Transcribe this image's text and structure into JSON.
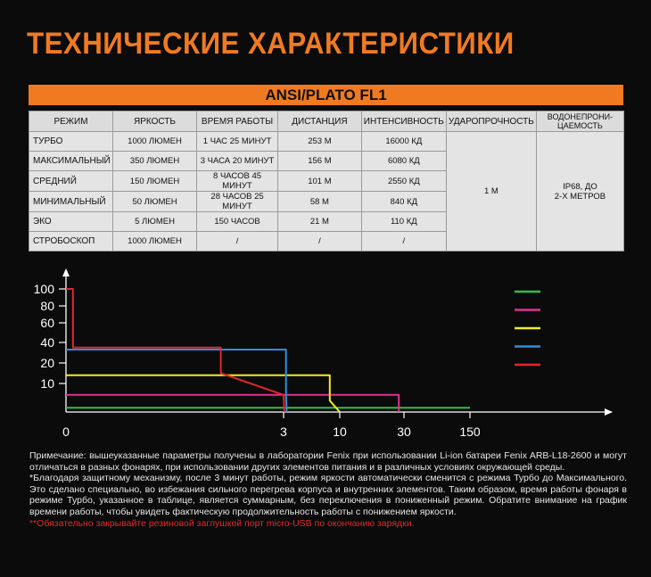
{
  "title": "ТЕХНИЧЕСКИЕ ХАРАКТЕРИСТИКИ",
  "banner": "ANSI/PLATO FL1",
  "colors": {
    "accent": "#f07a22"
  },
  "table": {
    "headers": [
      "РЕЖИМ",
      "ЯРКОСТЬ",
      "ВРЕМЯ РАБОТЫ",
      "ДИСТАНЦИЯ",
      "ИНТЕНСИВНОСТЬ",
      "УДАРОПРОЧНОСТЬ",
      "ВОДОНЕПРОНИ-ЦАЕМОСТЬ"
    ],
    "rows": [
      [
        "ТУРБО",
        "1000 ЛЮМЕН",
        "1 ЧАС 25 МИНУТ",
        "253 М",
        "16000 КД"
      ],
      [
        "МАКСИМАЛЬНЫЙ",
        "350 ЛЮМЕН",
        "3 ЧАСА 20 МИНУТ",
        "156 М",
        "6080 КД"
      ],
      [
        "СРЕДНИЙ",
        "150 ЛЮМЕН",
        "8 ЧАСОВ 45 МИНУТ",
        "101 М",
        "2550 КД"
      ],
      [
        "МИНИМАЛЬНЫЙ",
        "50 ЛЮМЕН",
        "28 ЧАСОВ 25 МИНУТ",
        "58 М",
        "840 КД"
      ],
      [
        "ЭКО",
        "5 ЛЮМЕН",
        "150 ЧАСОВ",
        "21 М",
        "110 КД"
      ],
      [
        "СТРОБОСКОП",
        "1000 ЛЮМЕН",
        "/",
        "/",
        "/"
      ]
    ],
    "impact": "1 М",
    "waterproof_line1": "IP68, ДО",
    "waterproof_line2": "2-Х МЕТРОВ"
  },
  "chart_data": {
    "type": "line",
    "y_ticks": [
      "100",
      "80",
      "60",
      "40",
      "20",
      "10"
    ],
    "x_ticks": [
      "0",
      "3",
      "10",
      "30",
      "150"
    ],
    "series": [
      {
        "color": "#2fbf4a",
        "points": [
          [
            0,
            1.5
          ],
          [
            150,
            1.5
          ]
        ]
      },
      {
        "color": "#e0308f",
        "points": [
          [
            0,
            6
          ],
          [
            28.4,
            6
          ],
          [
            28.4,
            0
          ]
        ]
      },
      {
        "color": "#f2ee22",
        "points": [
          [
            0,
            14
          ],
          [
            8.75,
            14
          ],
          [
            8.75,
            4
          ],
          [
            10,
            0
          ]
        ]
      },
      {
        "color": "#2a90e0",
        "points": [
          [
            0,
            33
          ],
          [
            3.3,
            33
          ],
          [
            3.3,
            6
          ],
          [
            3.4,
            0
          ]
        ]
      },
      {
        "color": "#e02828",
        "points": [
          [
            0,
            100
          ],
          [
            0.05,
            100
          ],
          [
            0.05,
            35
          ],
          [
            1.4,
            35
          ],
          [
            1.4,
            15
          ],
          [
            3,
            6
          ],
          [
            3.1,
            0
          ]
        ]
      }
    ]
  },
  "notes": {
    "p1": "Примечание: вышеуказанные параметры получены в лаборатории Fenix при использовании Li-ion батареи Fenix ARB-L18-2600 и могут отличаться в разных фонарях, при использовании других элементов питания и в различных условиях окружающей среды.",
    "p2": "*Благодаря защитному механизму, после 3 минут работы, режим яркости автоматически сменится с режима Турбо до Максимального. Это сделано специально, во избежания сильного перегрева корпуса и внутренних элементов. Таким образом, время работы фонаря в режиме Турбо, указанное в таблице, является суммарным, без переключения в пониженный режим. Обратите внимание на график времени работы, чтобы увидеть фактическую продолжительность работы с понижением яркости.",
    "p3": "**Обязательно закрывайте резиновой заглушкой порт micro-USB по окончанию зарядки."
  }
}
